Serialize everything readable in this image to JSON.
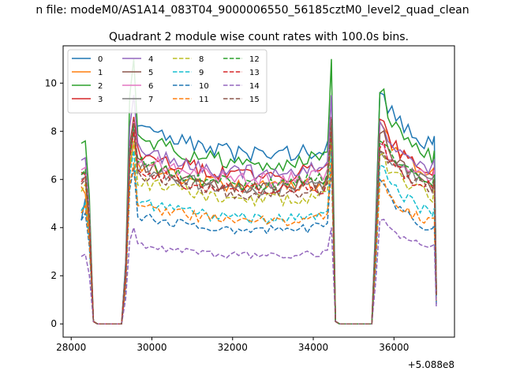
{
  "figure": {
    "suptitle": "n file: modeM0/AS1A14_083T04_9000006550_56185cztM0_level2_quad_clean"
  },
  "chart_data": {
    "type": "line",
    "title": "Quadrant 2 module wise count rates with 100.0s bins.",
    "xlabel": "",
    "ylabel": "",
    "x_offset_text": "+5.088e8",
    "xlim": [
      27800,
      37500
    ],
    "ylim": [
      -0.55,
      11.55
    ],
    "x_ticks": [
      28000,
      30000,
      32000,
      34000,
      36000
    ],
    "y_ticks": [
      0,
      2,
      4,
      6,
      8,
      10
    ],
    "grid": false,
    "legend": {
      "placement": "upper-left",
      "columns": 4
    },
    "segments": [
      {
        "x_start": 28250,
        "x_end": 28450,
        "bin": 100
      },
      {
        "x_start": 28550,
        "x_end": 29250,
        "bin": 100
      },
      {
        "x_start": 29350,
        "x_end": 34350,
        "bin": 100
      },
      {
        "x_start": 34450,
        "x_end": 34550,
        "bin": 100
      },
      {
        "x_start": 34650,
        "x_end": 35450,
        "bin": 100
      },
      {
        "x_start": 35550,
        "x_end": 37050,
        "bin": 100
      }
    ],
    "series": [
      {
        "name": "0",
        "color": "#1f77b4",
        "dash": "solid",
        "first": [
          4.3,
          5.2
        ],
        "high": 7.4,
        "peak1": 8.0,
        "peak2": 9.6,
        "last": 7.8
      },
      {
        "name": "1",
        "color": "#ff7f0e",
        "dash": "solid",
        "first": [
          5.7,
          5.4
        ],
        "high": 6.0,
        "peak1": 7.5,
        "peak2": 8.4,
        "last": 6.5
      },
      {
        "name": "2",
        "color": "#2ca02c",
        "dash": "solid",
        "first": [
          7.5,
          7.6
        ],
        "high": 7.0,
        "peak1": 11.0,
        "peak2": 9.6,
        "last": 7.2
      },
      {
        "name": "3",
        "color": "#d62728",
        "dash": "solid",
        "first": [
          6.3,
          6.2
        ],
        "high": 6.5,
        "peak1": 8.6,
        "peak2": 8.5,
        "last": 6.5
      },
      {
        "name": "4",
        "color": "#9467bd",
        "dash": "solid",
        "first": [
          6.8,
          6.9
        ],
        "high": 6.6,
        "peak1": 9.5,
        "peak2": 8.4,
        "last": 6.8
      },
      {
        "name": "5",
        "color": "#8c564b",
        "dash": "solid",
        "first": [
          6.2,
          6.3
        ],
        "high": 6.0,
        "peak1": 8.0,
        "peak2": 7.9,
        "last": 6.0
      },
      {
        "name": "6",
        "color": "#e377c2",
        "dash": "solid",
        "first": [
          6.4,
          6.5
        ],
        "high": 6.3,
        "peak1": 8.4,
        "peak2": 7.5,
        "last": 6.4
      },
      {
        "name": "7",
        "color": "#7f7f7f",
        "dash": "solid",
        "first": [
          6.0,
          6.1
        ],
        "high": 5.9,
        "peak1": 8.2,
        "peak2": 7.2,
        "last": 6.2
      },
      {
        "name": "8",
        "color": "#bcbd22",
        "dash": "dashed",
        "first": [
          5.5,
          5.8
        ],
        "high": 5.4,
        "peak1": 7.6,
        "peak2": 7.0,
        "last": 5.6
      },
      {
        "name": "9",
        "color": "#17becf",
        "dash": "dashed",
        "first": [
          4.7,
          5.0
        ],
        "high": 4.6,
        "peak1": 7.2,
        "peak2": 6.6,
        "last": 4.8
      },
      {
        "name": "10",
        "color": "#1f77b4",
        "dash": "dashed",
        "first": [
          4.3,
          4.6
        ],
        "high": 4.1,
        "peak1": 6.5,
        "peak2": 6.0,
        "last": 4.1
      },
      {
        "name": "11",
        "color": "#ff7f0e",
        "dash": "dashed",
        "first": [
          4.6,
          4.9
        ],
        "high": 4.5,
        "peak1": 6.7,
        "peak2": 5.9,
        "last": 4.4
      },
      {
        "name": "12",
        "color": "#2ca02c",
        "dash": "dashed",
        "first": [
          6.2,
          6.4
        ],
        "high": 6.1,
        "peak1": 8.3,
        "peak2": 7.6,
        "last": 6.2
      },
      {
        "name": "13",
        "color": "#d62728",
        "dash": "dashed",
        "first": [
          5.9,
          6.1
        ],
        "high": 5.8,
        "peak1": 8.0,
        "peak2": 7.3,
        "last": 5.9
      },
      {
        "name": "14",
        "color": "#9467bd",
        "dash": "dashed",
        "first": [
          2.8,
          2.9
        ],
        "high": 3.0,
        "peak1": 4.0,
        "peak2": 4.3,
        "last": 3.3
      },
      {
        "name": "15",
        "color": "#8c564b",
        "dash": "dashed",
        "first": [
          5.8,
          6.0
        ],
        "high": 5.7,
        "peak1": 8.5,
        "peak2": 7.2,
        "last": 6.0
      }
    ]
  }
}
